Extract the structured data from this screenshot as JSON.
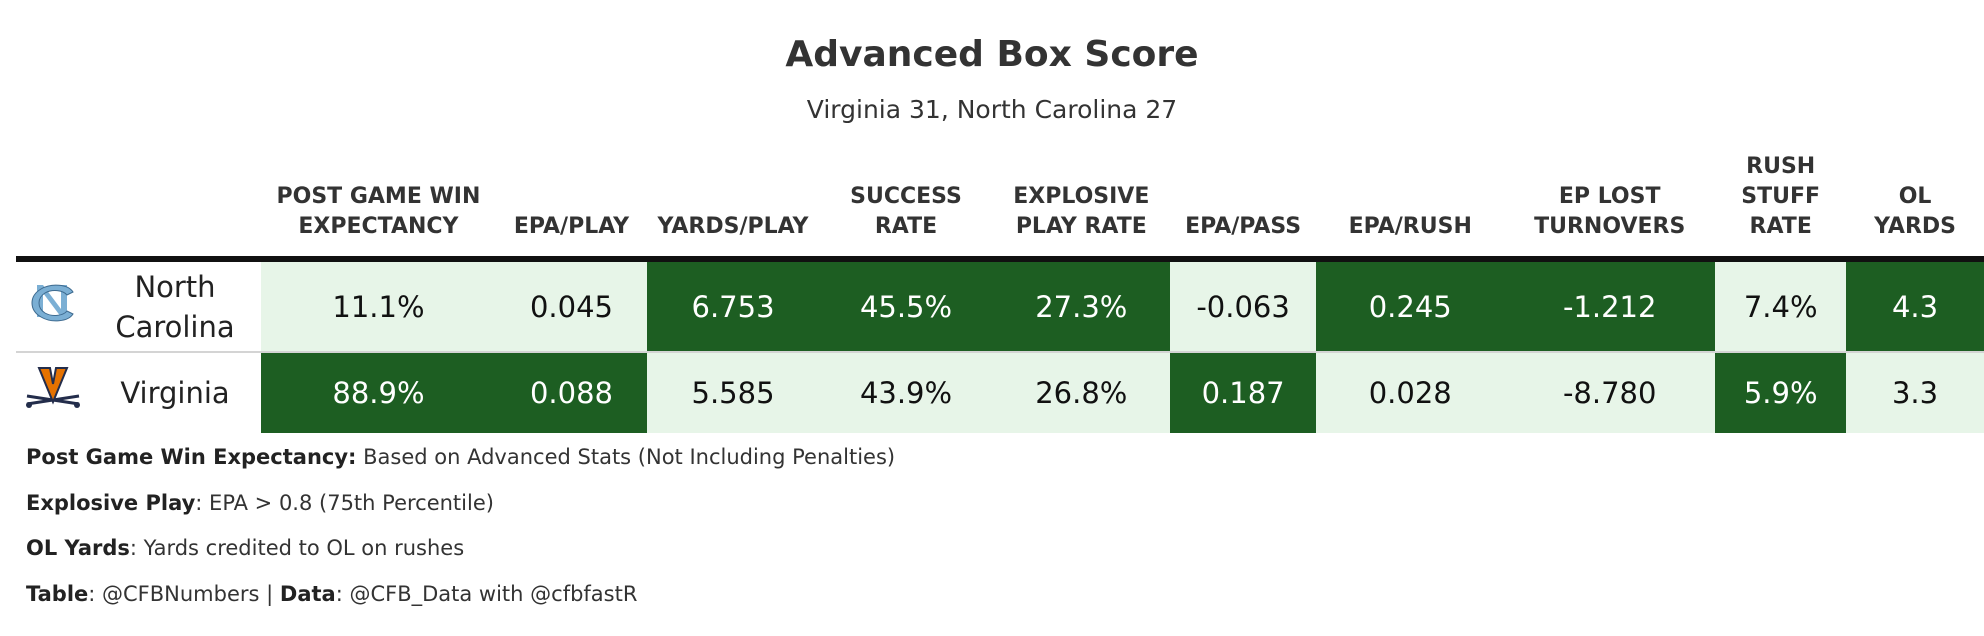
{
  "header": {
    "title": "Advanced Box Score",
    "subtitle": "Virginia 31, North Carolina 27"
  },
  "columns": [
    "POST GAME WIN EXPECTANCY",
    "EPA/PLAY",
    "YARDS/PLAY",
    "SUCCESS RATE",
    "EXPLOSIVE PLAY RATE",
    "EPA/PASS",
    "EPA/RUSH",
    "EP LOST TURNOVERS",
    "RUSH STUFF RATE",
    "OL YARDS"
  ],
  "teams": [
    {
      "name": "North Carolina",
      "logo": "unc-tar-heels-logo",
      "values": [
        "11.1%",
        "0.045",
        "6.753",
        "45.5%",
        "27.3%",
        "-0.063",
        "0.245",
        "-1.212",
        "7.4%",
        "4.3"
      ]
    },
    {
      "name": "Virginia",
      "logo": "virginia-cavaliers-logo",
      "values": [
        "88.9%",
        "0.088",
        "5.585",
        "43.9%",
        "26.8%",
        "0.187",
        "0.028",
        "-8.780",
        "5.9%",
        "3.3"
      ]
    }
  ],
  "notes": {
    "win_exp_label": "Post Game Win Expectancy:",
    "win_exp_text": " Based on Advanced Stats (Not Including Penalties)",
    "explosive_label": "Explosive Play",
    "explosive_text": ": EPA > 0.8 (75th Percentile)",
    "ol_label": "OL Yards",
    "ol_text": ": Yards credited to OL on rushes",
    "table_label": "Table",
    "table_text": ": @CFBNumbers | ",
    "data_label": "Data",
    "data_text": ": @CFB_Data with @cfbfastR"
  },
  "colors": {
    "winner_fill": "#1d5e22",
    "loser_fill": "#e7f5e8",
    "unc_blue": "#7bafd4",
    "uva_orange": "#e57200",
    "uva_navy": "#232d4b"
  }
}
